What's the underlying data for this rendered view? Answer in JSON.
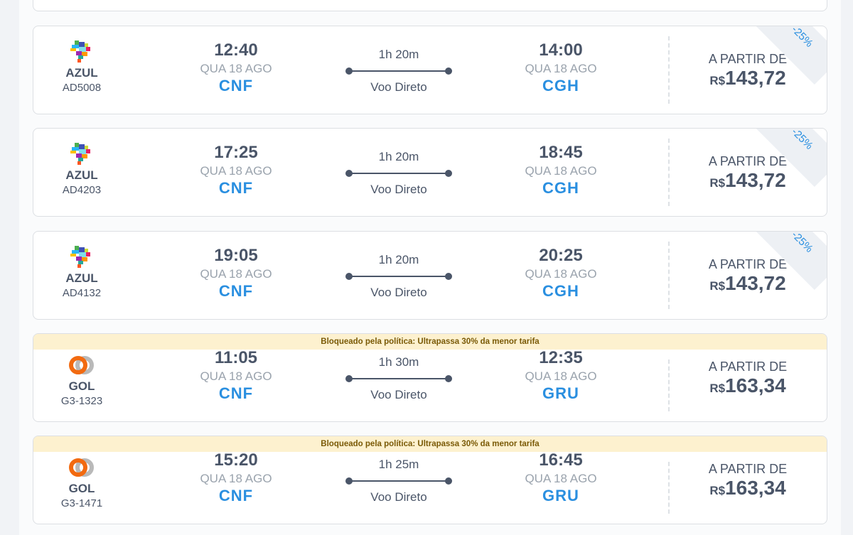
{
  "flights": [
    {
      "airline": "AZUL",
      "flight_no": "AD5008",
      "dep_time": "12:40",
      "dep_date": "QUA 18 AGO",
      "dep_code": "CNF",
      "duration": "1h 20m",
      "type": "Voo Direto",
      "arr_time": "14:00",
      "arr_date": "QUA 18 AGO",
      "arr_code": "CGH",
      "price_label": "A PARTIR DE",
      "currency": "R$",
      "price": "143,72",
      "discount": "-25%",
      "blocked": ""
    },
    {
      "airline": "AZUL",
      "flight_no": "AD4203",
      "dep_time": "17:25",
      "dep_date": "QUA 18 AGO",
      "dep_code": "CNF",
      "duration": "1h 20m",
      "type": "Voo Direto",
      "arr_time": "18:45",
      "arr_date": "QUA 18 AGO",
      "arr_code": "CGH",
      "price_label": "A PARTIR DE",
      "currency": "R$",
      "price": "143,72",
      "discount": "-25%",
      "blocked": ""
    },
    {
      "airline": "AZUL",
      "flight_no": "AD4132",
      "dep_time": "19:05",
      "dep_date": "QUA 18 AGO",
      "dep_code": "CNF",
      "duration": "1h 20m",
      "type": "Voo Direto",
      "arr_time": "20:25",
      "arr_date": "QUA 18 AGO",
      "arr_code": "CGH",
      "price_label": "A PARTIR DE",
      "currency": "R$",
      "price": "143,72",
      "discount": "-25%",
      "blocked": ""
    },
    {
      "airline": "GOL",
      "flight_no": "G3-1323",
      "dep_time": "11:05",
      "dep_date": "QUA 18 AGO",
      "dep_code": "CNF",
      "duration": "1h 30m",
      "type": "Voo Direto",
      "arr_time": "12:35",
      "arr_date": "QUA 18 AGO",
      "arr_code": "GRU",
      "price_label": "A PARTIR DE",
      "currency": "R$",
      "price": "163,34",
      "discount": "",
      "blocked": "Bloqueado pela política: Ultrapassa 30% da menor tarifa"
    },
    {
      "airline": "GOL",
      "flight_no": "G3-1471",
      "dep_time": "15:20",
      "dep_date": "QUA 18 AGO",
      "dep_code": "CNF",
      "duration": "1h 25m",
      "type": "Voo Direto",
      "arr_time": "16:45",
      "arr_date": "QUA 18 AGO",
      "arr_code": "GRU",
      "price_label": "A PARTIR DE",
      "currency": "R$",
      "price": "163,34",
      "discount": "",
      "blocked": "Bloqueado pela política: Ultrapassa 30% da menor tarifa"
    }
  ],
  "colors": {
    "accent": "#2a8fe0",
    "text": "#4a5568",
    "banner": "#fdf1cf"
  }
}
